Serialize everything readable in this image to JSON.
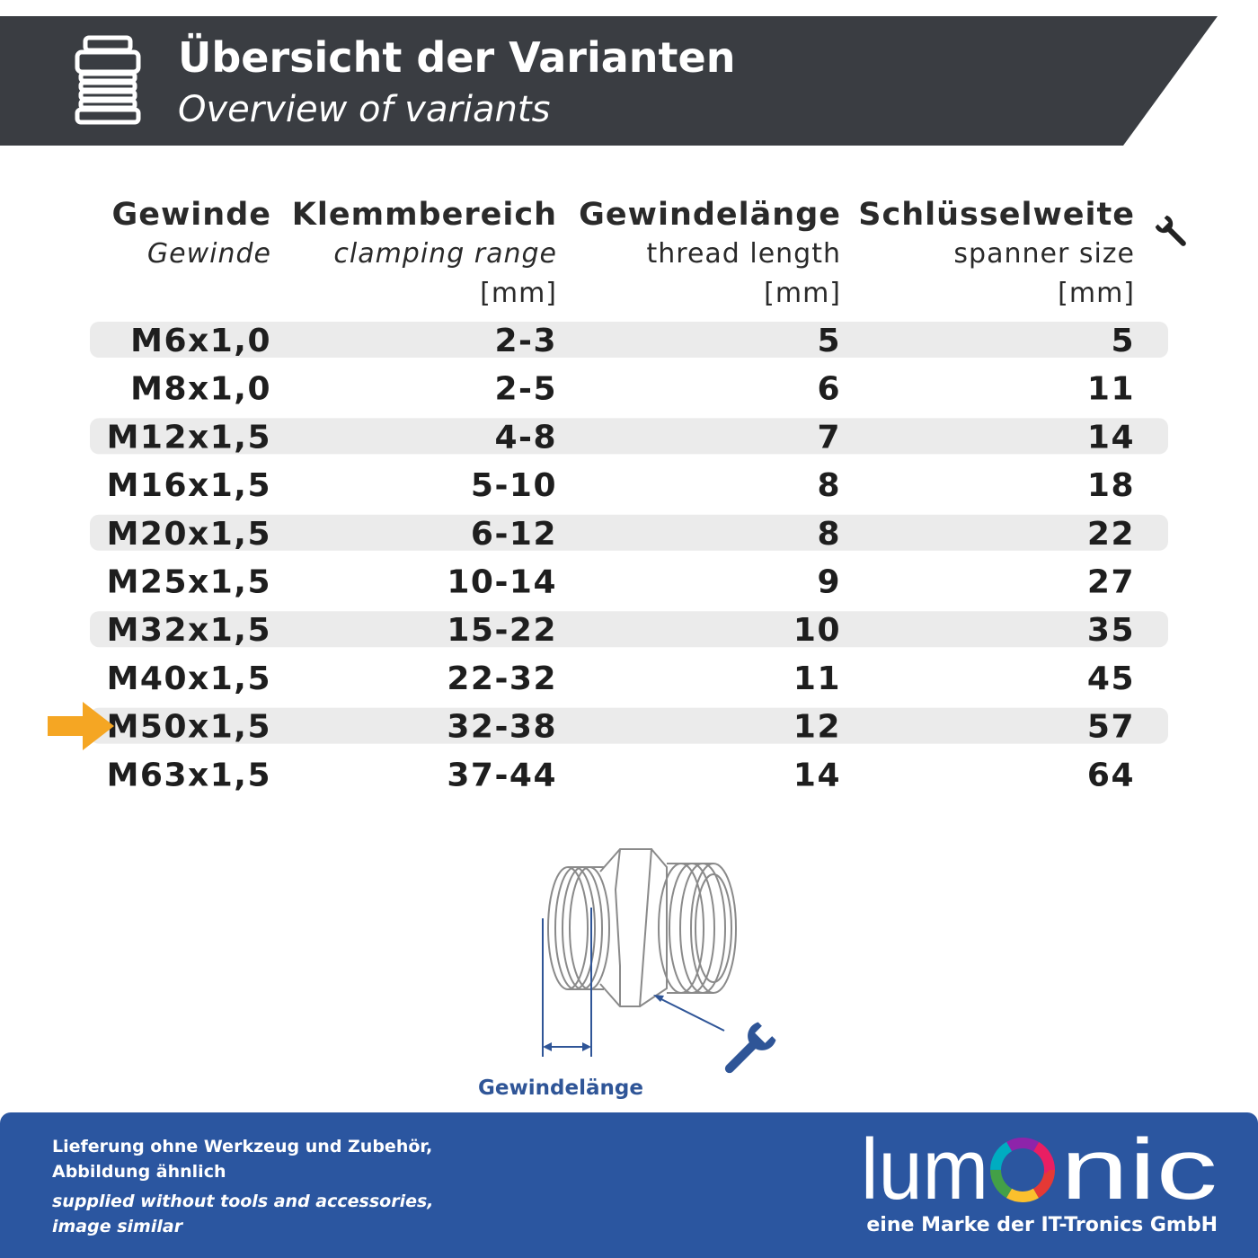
{
  "header": {
    "title": "Übersicht der Varianten",
    "subtitle": "Overview of variants"
  },
  "table": {
    "columns": [
      {
        "title": "Gewinde",
        "subtitle": "Gewinde"
      },
      {
        "title": "Klemmbereich",
        "subtitle": "clamping range",
        "unit": "[mm]"
      },
      {
        "title": "Gewindelänge",
        "subtitle": "thread length",
        "unit": "[mm]"
      },
      {
        "title": "Schlüsselweite",
        "subtitle": "spanner size",
        "unit": "[mm]"
      }
    ],
    "rows": [
      [
        "M6x1,0",
        "2-3",
        5,
        5
      ],
      [
        "M8x1,0",
        "2-5",
        6,
        11
      ],
      [
        "M12x1,5",
        "4-8",
        7,
        14
      ],
      [
        "M16x1,5",
        "5-10",
        8,
        18
      ],
      [
        "M20x1,5",
        "6-12",
        8,
        22
      ],
      [
        "M25x1,5",
        "10-14",
        9,
        27
      ],
      [
        "M32x1,5",
        "15-22",
        10,
        35
      ],
      [
        "M40x1,5",
        "22-32",
        11,
        45
      ],
      [
        "M50x1,5",
        "32-38",
        12,
        57
      ],
      [
        "M63x1,5",
        "37-44",
        14,
        64
      ]
    ]
  },
  "diagram": {
    "label": "Gewindelänge"
  },
  "footer": {
    "note_de": [
      "Lieferung ohne Werkzeug und Zubehör,",
      "Abbildung ähnlich"
    ],
    "note_en": [
      "supplied without tools and accessories,",
      "image similar"
    ],
    "logo": {
      "before": "lum",
      "after": "nic"
    },
    "tagline": "eine Marke der IT-Tronics GmbH"
  }
}
